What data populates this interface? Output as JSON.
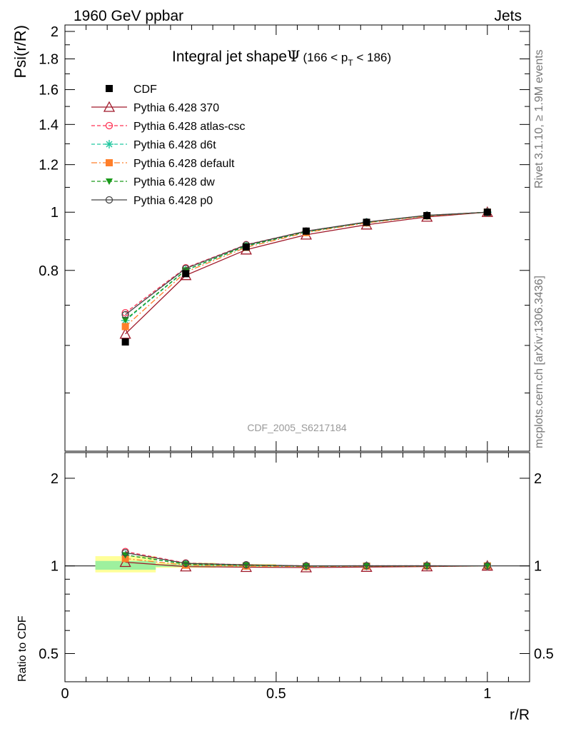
{
  "header": {
    "left": "1960 GeV ppbar",
    "right": "Jets"
  },
  "side_labels": {
    "rivet": "Rivet 3.1.10, ≥ 1.9M events",
    "source": "mcplots.cern.ch [arXiv:1306.3436]"
  },
  "watermark": "CDF_2005_S6217184",
  "colors": {
    "CDF": "#000000",
    "p370": "#a0192a",
    "atlas": "#ff3355",
    "d6t": "#22c7a0",
    "default": "#ff7f2a",
    "dw": "#1a9a1a",
    "p0": "#444444"
  },
  "chart_data": [
    {
      "type": "line",
      "title_main": "Integral jet shape",
      "title_symbol": "Ψ",
      "title_range_pre": "(166 < p",
      "title_range_sub": "T",
      "title_range_post": " < 186)",
      "ylabel": "Psi(r/R)",
      "xlabel": "r/R",
      "xlim": [
        0,
        1.1
      ],
      "ylim": [
        0.4,
        2.05
      ],
      "yscale": "log",
      "yticks": [
        "0.8",
        "1",
        "1.2",
        "1.4",
        "1.6",
        "1.8",
        "2"
      ],
      "x": [
        0.143,
        0.286,
        0.429,
        0.571,
        0.714,
        0.857,
        1.0
      ],
      "series": [
        {
          "name": "CDF",
          "key": "CDF",
          "marker": "square",
          "line": "none",
          "values": [
            0.608,
            0.79,
            0.875,
            0.93,
            0.962,
            0.987,
            1.0
          ]
        },
        {
          "name": "Pythia 6.428 370",
          "key": "p370",
          "marker": "triangle-open",
          "line": "solid",
          "values": [
            0.627,
            0.785,
            0.866,
            0.917,
            0.953,
            0.982,
            1.0
          ]
        },
        {
          "name": "Pythia 6.428 atlas-csc",
          "key": "atlas",
          "marker": "circle-open",
          "line": "dashed",
          "values": [
            0.68,
            0.808,
            0.883,
            0.93,
            0.963,
            0.988,
            1.0
          ]
        },
        {
          "name": "Pythia 6.428 d6t",
          "key": "d6t",
          "marker": "star",
          "line": "dashed",
          "values": [
            0.66,
            0.8,
            0.878,
            0.927,
            0.962,
            0.987,
            1.0
          ]
        },
        {
          "name": "Pythia 6.428 default",
          "key": "default",
          "marker": "square",
          "line": "dashdot",
          "values": [
            0.645,
            0.795,
            0.874,
            0.925,
            0.96,
            0.986,
            1.0
          ]
        },
        {
          "name": "Pythia 6.428 dw",
          "key": "dw",
          "marker": "triangle-down",
          "line": "dashed",
          "values": [
            0.662,
            0.801,
            0.879,
            0.928,
            0.962,
            0.987,
            1.0
          ]
        },
        {
          "name": "Pythia 6.428 p0",
          "key": "p0",
          "marker": "circle-open",
          "line": "solid",
          "values": [
            0.675,
            0.806,
            0.882,
            0.93,
            0.963,
            0.988,
            1.0
          ]
        }
      ]
    },
    {
      "type": "line",
      "ylabel": "Ratio to CDF",
      "xlabel": "r/R",
      "xlim": [
        0,
        1.1
      ],
      "ylim": [
        0.4,
        2.45
      ],
      "yscale": "log",
      "yticks": [
        "0.5",
        "1",
        "2"
      ],
      "xticks": [
        "0",
        "0.5",
        "1"
      ],
      "x": [
        0.143,
        0.286,
        0.429,
        0.571,
        0.714,
        0.857,
        1.0
      ],
      "bands": [
        {
          "x": [
            0.072,
            0.215
          ],
          "outer": [
            0.95,
            1.08
          ],
          "inner": [
            0.97,
            1.04
          ]
        },
        {
          "x": [
            0.215,
            0.357
          ],
          "outer": [
            0.985,
            1.025
          ],
          "inner": [
            0.993,
            1.012
          ]
        },
        {
          "x": [
            0.357,
            0.5
          ],
          "outer": [
            0.99,
            1.015
          ],
          "inner": [
            0.996,
            1.007
          ]
        }
      ],
      "series": [
        {
          "name": "Pythia 6.428 370",
          "key": "p370",
          "values": [
            1.03,
            0.994,
            0.99,
            0.987,
            0.991,
            0.995,
            1.0
          ]
        },
        {
          "name": "Pythia 6.428 atlas-csc",
          "key": "atlas",
          "values": [
            1.12,
            1.023,
            1.009,
            1.0,
            1.001,
            1.001,
            1.0
          ]
        },
        {
          "name": "Pythia 6.428 d6t",
          "key": "d6t",
          "values": [
            1.09,
            1.013,
            1.003,
            0.997,
            1.0,
            1.0,
            1.0
          ]
        },
        {
          "name": "Pythia 6.428 default",
          "key": "default",
          "values": [
            1.06,
            1.006,
            0.999,
            0.995,
            0.998,
            0.999,
            1.0
          ]
        },
        {
          "name": "Pythia 6.428 dw",
          "key": "dw",
          "values": [
            1.09,
            1.014,
            1.005,
            0.998,
            1.0,
            1.0,
            1.0
          ]
        },
        {
          "name": "Pythia 6.428 p0",
          "key": "p0",
          "values": [
            1.11,
            1.02,
            1.008,
            1.0,
            1.001,
            1.001,
            1.0
          ]
        }
      ]
    }
  ]
}
